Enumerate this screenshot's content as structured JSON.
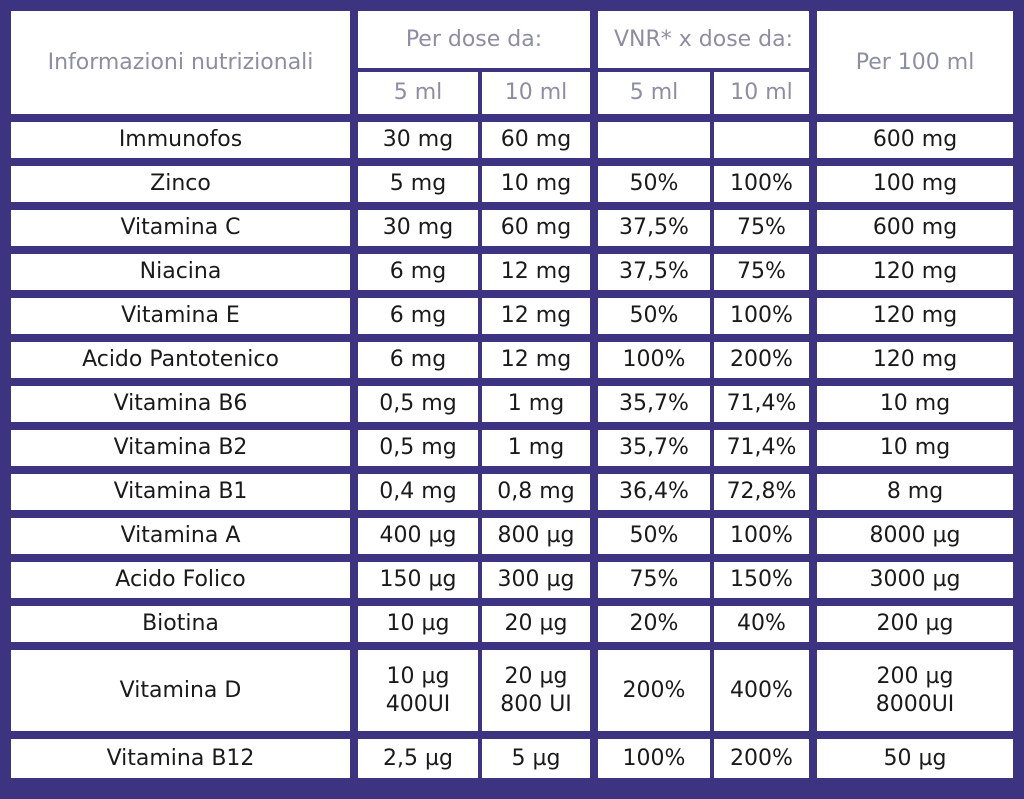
{
  "header": {
    "label_col": "Informazioni nutrizionali",
    "per_dose": "Per dose da:",
    "vnr_dose": "VNR* x dose da:",
    "per_100": "Per 100 ml",
    "sub": [
      "5 ml",
      "10 ml",
      "5 ml",
      "10 ml"
    ]
  },
  "rows": [
    {
      "name": "Immunofos",
      "d5": "30 mg",
      "d10": "60 mg",
      "v5": "",
      "v10": "",
      "p100": "600 mg"
    },
    {
      "name": "Zinco",
      "d5": "5 mg",
      "d10": "10 mg",
      "v5": "50%",
      "v10": "100%",
      "p100": "100 mg"
    },
    {
      "name": "Vitamina C",
      "d5": "30 mg",
      "d10": "60 mg",
      "v5": "37,5%",
      "v10": "75%",
      "p100": "600 mg"
    },
    {
      "name": "Niacina",
      "d5": "6 mg",
      "d10": "12 mg",
      "v5": "37,5%",
      "v10": "75%",
      "p100": "120 mg"
    },
    {
      "name": "Vitamina E",
      "d5": "6 mg",
      "d10": "12 mg",
      "v5": "50%",
      "v10": "100%",
      "p100": "120 mg"
    },
    {
      "name": "Acido Pantotenico",
      "d5": "6 mg",
      "d10": "12 mg",
      "v5": "100%",
      "v10": "200%",
      "p100": "120 mg"
    },
    {
      "name": "Vitamina B6",
      "d5": "0,5 mg",
      "d10": "1 mg",
      "v5": "35,7%",
      "v10": "71,4%",
      "p100": "10 mg"
    },
    {
      "name": "Vitamina B2",
      "d5": "0,5 mg",
      "d10": "1 mg",
      "v5": "35,7%",
      "v10": "71,4%",
      "p100": "10 mg"
    },
    {
      "name": "Vitamina B1",
      "d5": "0,4 mg",
      "d10": "0,8 mg",
      "v5": "36,4%",
      "v10": "72,8%",
      "p100": "8 mg"
    },
    {
      "name": "Vitamina A",
      "d5": "400 µg",
      "d10": "800 µg",
      "v5": "50%",
      "v10": "100%",
      "p100": "8000 µg"
    },
    {
      "name": "Acido Folico",
      "d5": "150 µg",
      "d10": "300 µg",
      "v5": "75%",
      "v10": "150%",
      "p100": "3000 µg"
    },
    {
      "name": "Biotina",
      "d5": "10 µg",
      "d10": "20 µg",
      "v5": "20%",
      "v10": "40%",
      "p100": "200 µg"
    }
  ],
  "vitd": {
    "name": "Vitamina D",
    "d5a": "10 µg",
    "d5b": "400UI",
    "d10a": "20 µg",
    "d10b": "800 UI",
    "v5": "200%",
    "v10": "400%",
    "p100a": "200 µg",
    "p100b": "8000UI"
  },
  "b12": {
    "name": "Vitamina B12",
    "d5": "2,5 µg",
    "d10": "5 µg",
    "v5": "100%",
    "v10": "200%",
    "p100": "50 µg"
  },
  "colors": {
    "frame": "#3c3480",
    "header_text": "#8e8ea3",
    "body_text": "#1a1a1a"
  }
}
